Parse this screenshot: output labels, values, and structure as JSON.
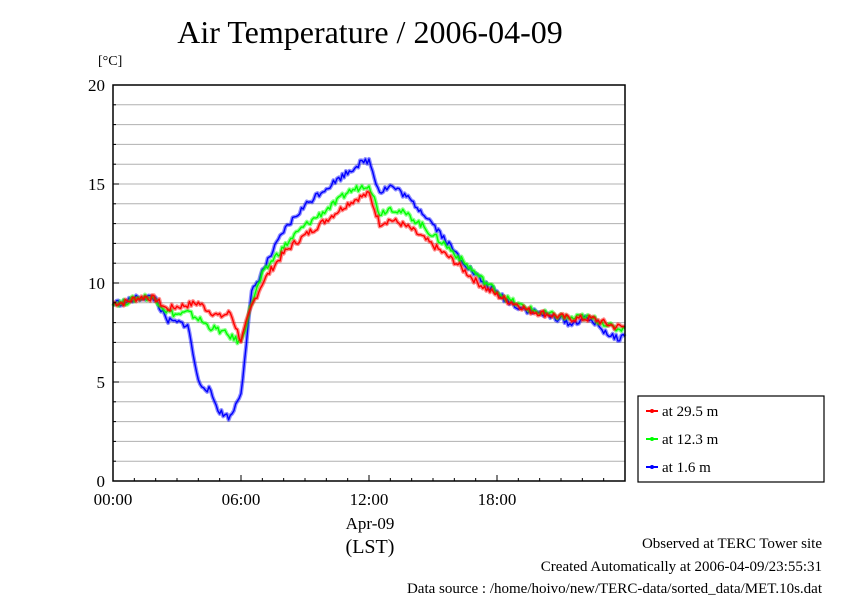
{
  "chart_data": {
    "type": "line",
    "title": "Air Temperature / 2006-04-09",
    "ylabel": "[°C]",
    "xlabel_date": "Apr-09",
    "xlabel_zone": "(LST)",
    "ylim": [
      0,
      20
    ],
    "yticks": [
      "0",
      "5",
      "10",
      "15",
      "20"
    ],
    "xlim": [
      0,
      24
    ],
    "xticks": [
      "00:00",
      "06:00",
      "12:00",
      "18:00"
    ],
    "x_hours": [
      0,
      0.5,
      1,
      1.5,
      2,
      2.5,
      3,
      3.5,
      4,
      4.5,
      5,
      5.5,
      6,
      6.5,
      7,
      7.5,
      8,
      8.5,
      9,
      9.5,
      10,
      10.5,
      11,
      11.5,
      12,
      12.5,
      13,
      13.5,
      14,
      14.5,
      15,
      15.5,
      16,
      16.5,
      17,
      17.5,
      18,
      18.5,
      19,
      19.5,
      20,
      20.5,
      21,
      21.5,
      22,
      22.5,
      23,
      23.5,
      24
    ],
    "series": [
      {
        "name": "at 29.5 m",
        "color": "#ff0000",
        "values": [
          9.0,
          9.0,
          9.2,
          9.3,
          9.2,
          8.7,
          8.8,
          8.9,
          9.0,
          8.6,
          8.3,
          8.5,
          7.1,
          8.8,
          10.0,
          10.8,
          11.5,
          12.0,
          12.4,
          12.8,
          13.2,
          13.6,
          14.0,
          14.3,
          14.5,
          13.0,
          13.2,
          13.0,
          12.7,
          12.3,
          11.9,
          11.5,
          11.1,
          10.6,
          10.1,
          9.7,
          9.4,
          9.1,
          8.9,
          8.6,
          8.5,
          8.4,
          8.3,
          8.2,
          8.2,
          8.2,
          8.0,
          7.8,
          7.8
        ]
      },
      {
        "name": "at 12.3 m",
        "color": "#00ff00",
        "values": [
          9.0,
          9.0,
          9.2,
          9.3,
          9.2,
          8.6,
          8.4,
          8.5,
          8.2,
          7.8,
          7.6,
          7.3,
          7.0,
          9.0,
          10.4,
          11.2,
          11.8,
          12.4,
          12.9,
          13.3,
          13.7,
          14.1,
          14.6,
          14.8,
          15.0,
          13.5,
          13.8,
          13.6,
          13.3,
          12.9,
          12.4,
          12.0,
          11.5,
          11.0,
          10.5,
          10.0,
          9.6,
          9.2,
          8.9,
          8.7,
          8.5,
          8.4,
          8.3,
          8.2,
          8.3,
          8.2,
          8.0,
          7.7,
          7.7
        ]
      },
      {
        "name": "at 1.6 m",
        "color": "#0000ff",
        "values": [
          9.0,
          9.0,
          9.2,
          9.3,
          9.2,
          8.1,
          8.0,
          7.9,
          5.0,
          4.6,
          3.5,
          3.2,
          4.5,
          9.5,
          10.6,
          11.6,
          12.6,
          13.3,
          13.9,
          14.4,
          14.8,
          15.2,
          15.6,
          16.0,
          16.2,
          14.6,
          14.9,
          14.6,
          14.1,
          13.6,
          13.0,
          12.3,
          11.6,
          11.0,
          10.4,
          9.9,
          9.5,
          9.1,
          8.8,
          8.6,
          8.5,
          8.3,
          8.2,
          7.9,
          8.2,
          8.1,
          7.6,
          7.2,
          7.3
        ]
      }
    ],
    "grid": true,
    "legend_position": "right-bottom"
  },
  "footer": {
    "line1": "Observed at TERC Tower site",
    "line2": "Created Automatically at 2006-04-09/23:55:31",
    "line3": "Data source : /home/hoivo/new/TERC-data/sorted_data/MET.10s.dat"
  }
}
